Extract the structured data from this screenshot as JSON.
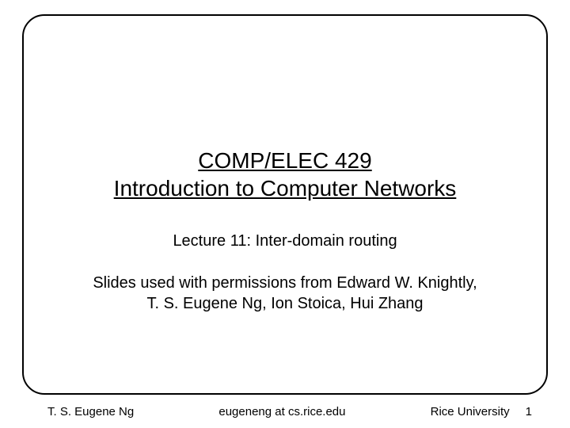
{
  "title": {
    "line1": "COMP/ELEC 429",
    "line2": "Introduction to Computer Networks"
  },
  "subtitle": "Lecture 11: Inter-domain routing",
  "credits": {
    "line1": "Slides used with permissions from Edward W. Knightly,",
    "line2": "T. S. Eugene Ng, Ion Stoica, Hui Zhang"
  },
  "footer": {
    "author": "T. S. Eugene Ng",
    "email": "eugeneng at cs.rice.edu",
    "institution": "Rice University",
    "page": "1"
  },
  "style": {
    "background_color": "#ffffff",
    "border_color": "#000000",
    "border_width": 2,
    "border_radius": 28,
    "title_fontsize": 28,
    "subtitle_fontsize": 20,
    "credits_fontsize": 20,
    "footer_fontsize": 15,
    "text_color": "#000000",
    "font_family": "Arial"
  }
}
